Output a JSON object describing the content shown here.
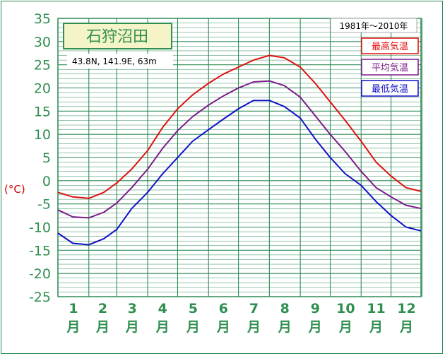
{
  "chart_data": {
    "type": "line",
    "title": "石狩沼田",
    "location": "43.8N,  141.9E,  63m",
    "period": "1981年〜2010年",
    "ylabel": "(°C)",
    "ylim": [
      -25,
      35
    ],
    "yticks": [
      35,
      30,
      25,
      20,
      15,
      10,
      5,
      0,
      -5,
      -10,
      -15,
      -20,
      -25
    ],
    "months": [
      "1",
      "2",
      "3",
      "4",
      "5",
      "6",
      "7",
      "8",
      "9",
      "10",
      "11",
      "12"
    ],
    "month_suffix": "月",
    "grid": true,
    "legend_position": "top-right",
    "x_day": [
      1,
      16,
      32,
      47,
      60,
      75,
      91,
      106,
      121,
      136,
      152,
      167,
      182,
      197,
      213,
      228,
      244,
      259,
      274,
      289,
      305,
      320,
      335,
      350,
      365
    ],
    "series": [
      {
        "name": "最高気温",
        "color": "#e01010",
        "values": [
          -2.5,
          -3.5,
          -3.8,
          -2.5,
          -0.5,
          2.5,
          6.5,
          11.5,
          15.5,
          18.5,
          21.0,
          23.0,
          24.5,
          26.0,
          27.0,
          26.5,
          24.5,
          21.0,
          17.0,
          13.0,
          8.5,
          4.0,
          1.0,
          -1.5,
          -2.3
        ]
      },
      {
        "name": "平均気温",
        "color": "#7a1a8a",
        "values": [
          -6.3,
          -7.8,
          -8.0,
          -6.8,
          -4.8,
          -1.5,
          2.5,
          7.0,
          10.8,
          13.8,
          16.3,
          18.3,
          20.0,
          21.3,
          21.5,
          20.5,
          18.0,
          14.0,
          10.0,
          6.3,
          2.0,
          -1.5,
          -3.5,
          -5.3,
          -6.0
        ]
      },
      {
        "name": "最低気温",
        "color": "#1010c8",
        "values": [
          -11.3,
          -13.5,
          -13.8,
          -12.5,
          -10.5,
          -6.0,
          -2.5,
          1.5,
          5.0,
          8.5,
          11.0,
          13.3,
          15.5,
          17.3,
          17.3,
          16.0,
          13.5,
          9.0,
          5.0,
          1.5,
          -1.0,
          -4.5,
          -7.5,
          -10.0,
          -10.8
        ]
      }
    ]
  }
}
